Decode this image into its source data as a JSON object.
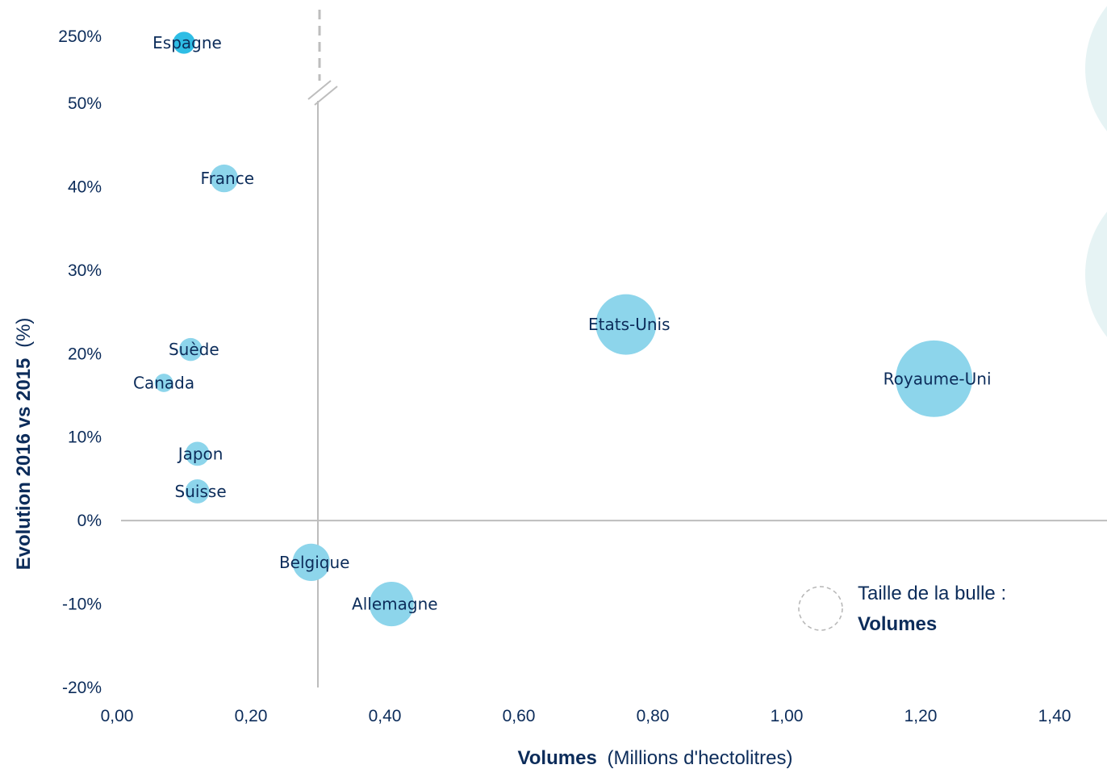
{
  "chart_data": {
    "type": "bubble",
    "xlabel": "Volumes",
    "xlabel_suffix": "(Millions d'hectolitres)",
    "ylabel": "Evolution 2016 vs 2015",
    "ylabel_suffix": "(%)",
    "xlim": [
      0,
      1.4
    ],
    "ylim": [
      -0.2,
      0.5
    ],
    "x_ticks": [
      0,
      0.2,
      0.4,
      0.6,
      0.8,
      1.0,
      1.2,
      1.4
    ],
    "x_tick_labels": [
      "0,00",
      "0,20",
      "0,40",
      "0,60",
      "0,80",
      "1,00",
      "1,20",
      "1,40"
    ],
    "y_ticks": [
      -0.2,
      -0.1,
      0,
      0.1,
      0.2,
      0.3,
      0.4,
      0.5
    ],
    "y_tick_labels": [
      "-20%",
      "-10%",
      "0%",
      "10%",
      "20%",
      "30%",
      "40%",
      "50%"
    ],
    "y_break": {
      "label": "250%",
      "value": 2.5
    },
    "reference_line_x": 0.3,
    "bubble_color": "#8dd5eb",
    "highlight_color": "#2ebde5",
    "points": [
      {
        "label": "Espagne",
        "x": 0.1,
        "y": 2.5,
        "size": 0.1,
        "broken_axis": true,
        "highlight": true
      },
      {
        "label": "France",
        "x": 0.16,
        "y": 0.41,
        "size": 0.16
      },
      {
        "label": "Suède",
        "x": 0.11,
        "y": 0.205,
        "size": 0.11
      },
      {
        "label": "Canada",
        "x": 0.07,
        "y": 0.165,
        "size": 0.07
      },
      {
        "label": "Japon",
        "x": 0.12,
        "y": 0.08,
        "size": 0.12
      },
      {
        "label": "Suisse",
        "x": 0.12,
        "y": 0.035,
        "size": 0.12
      },
      {
        "label": "Belgique",
        "x": 0.29,
        "y": -0.05,
        "size": 0.29
      },
      {
        "label": "Allemagne",
        "x": 0.41,
        "y": -0.1,
        "size": 0.41
      },
      {
        "label": "Etats-Unis",
        "x": 0.76,
        "y": 0.235,
        "size": 0.76
      },
      {
        "label": "Royaume-Uni",
        "x": 1.22,
        "y": 0.17,
        "size": 1.22
      }
    ]
  },
  "legend": {
    "line1": "Taille de la bulle :",
    "line2": "Volumes"
  }
}
